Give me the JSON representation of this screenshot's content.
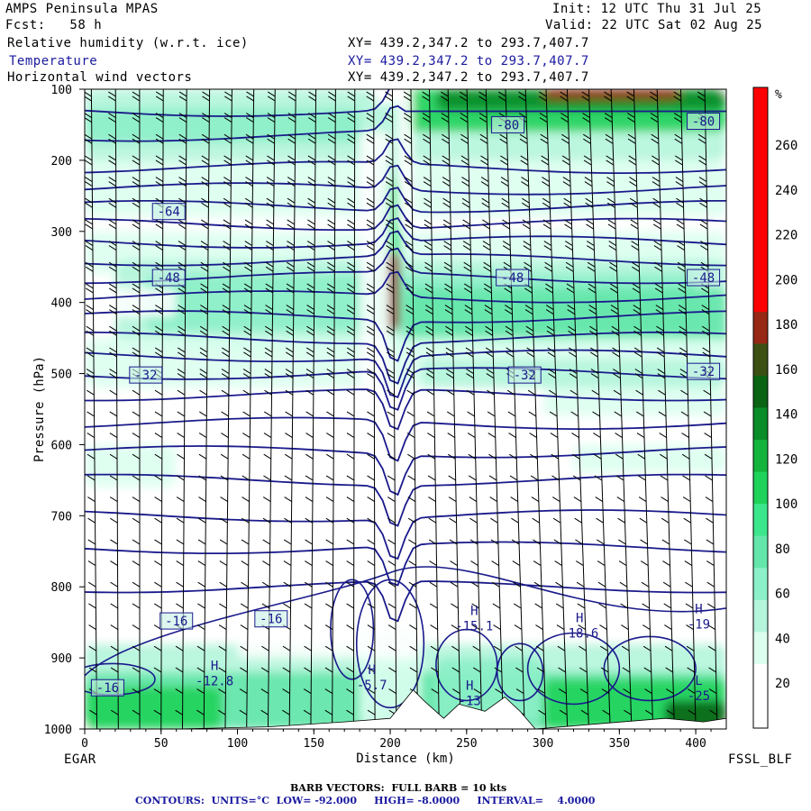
{
  "header": {
    "model": "AMPS Peninsula MPAS",
    "forecast": "Fcst:   58 h",
    "init": "Init: 12 UTC Thu 31 Jul 25",
    "valid": "Valid: 22 UTC Sat 02 Aug 25",
    "field1_name": "Relative humidity (w.r.t. ice)",
    "field1_xy": "XY= 439.2,347.2 to 293.7,407.7",
    "field2_name": "Temperature",
    "field2_xy": "XY= 439.2,347.2 to 293.7,407.7",
    "field3_name": "Horizontal wind vectors",
    "field3_xy": "XY= 439.2,347.2 to 293.7,407.7"
  },
  "footer": {
    "left_end": "EGAR",
    "right_end": "FSSL_BLF",
    "barb_note": "BARB VECTORS:  FULL BARB = 10 kts",
    "contours_note": "CONTOURS:  UNITS=°C  LOW= -92.000     HIGH= -8.0000     INTERVAL=    4.0000"
  },
  "colors": {
    "temperature_contour": "#1a1a8c",
    "barb": "#000000",
    "terrain": "#ffffff"
  },
  "chart_data": {
    "type": "heatmap",
    "xlabel": "Distance (km)",
    "ylabel": "Pressure (hPa)",
    "xlim": [
      0,
      420
    ],
    "ylim": [
      1000,
      100
    ],
    "x_ticks": [
      0,
      50,
      100,
      150,
      200,
      250,
      300,
      350,
      400
    ],
    "y_ticks": [
      100,
      200,
      300,
      400,
      500,
      600,
      700,
      800,
      900,
      1000
    ],
    "colorbar": {
      "unit": "%",
      "tick_labels": [
        20,
        40,
        60,
        80,
        100,
        120,
        140,
        160,
        180,
        200,
        220,
        240,
        260
      ],
      "levels": [
        0,
        10,
        20,
        30,
        40,
        50,
        60,
        70,
        80,
        90,
        100,
        110,
        120,
        140,
        160,
        180,
        200,
        220,
        240,
        260,
        280
      ],
      "colors": [
        "#ffffff",
        "#ffffff",
        "#dcfff0",
        "#b4f5dc",
        "#8cf0c8",
        "#64e6aa",
        "#3ce68c",
        "#1ed25a",
        "#14b43c",
        "#0a8c28",
        "#0a6414",
        "#3c5014",
        "#962814",
        "#ff0000",
        "#ff0000",
        "#ff0000",
        "#ff0000",
        "#ff0000",
        "#ff0000",
        "#ff0000"
      ]
    },
    "temperature_labels": [
      {
        "x": 277,
        "p": 150,
        "text": "-80"
      },
      {
        "x": 405,
        "p": 145,
        "text": "-80"
      },
      {
        "x": 55,
        "p": 272,
        "text": "-64"
      },
      {
        "x": 55,
        "p": 365,
        "text": "-48"
      },
      {
        "x": 280,
        "p": 365,
        "text": "-48"
      },
      {
        "x": 405,
        "p": 365,
        "text": "-48"
      },
      {
        "x": 40,
        "p": 502,
        "text": "-32"
      },
      {
        "x": 288,
        "p": 502,
        "text": "-32"
      },
      {
        "x": 405,
        "p": 497,
        "text": "-32"
      },
      {
        "x": 60,
        "p": 848,
        "text": "-16"
      },
      {
        "x": 122,
        "p": 845,
        "text": "-16"
      },
      {
        "x": 15,
        "p": 942,
        "text": "-16"
      }
    ],
    "extrema_labels": [
      {
        "x": 85,
        "p": 922,
        "mark": "H",
        "value": "-12.8"
      },
      {
        "x": 188,
        "p": 928,
        "mark": "H",
        "value": "-5.7"
      },
      {
        "x": 255,
        "p": 845,
        "mark": "H",
        "value": "-15.1"
      },
      {
        "x": 324,
        "p": 855,
        "mark": "H",
        "value": "-18.6"
      },
      {
        "x": 402,
        "p": 842,
        "mark": "H",
        "value": "-19"
      },
      {
        "x": 252,
        "p": 950,
        "mark": "H",
        "value": "-13"
      },
      {
        "x": 402,
        "p": 943,
        "mark": "L",
        "value": "-25"
      }
    ]
  }
}
